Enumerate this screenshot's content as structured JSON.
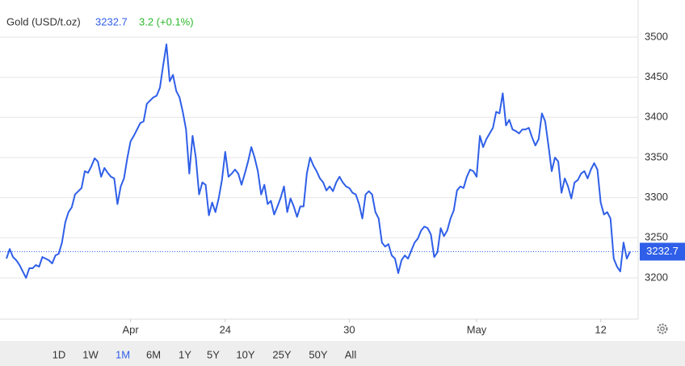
{
  "header": {
    "title": "Gold (USD/t.oz)",
    "price": "3232.7",
    "change": "3.2 (+0.1%)"
  },
  "chart_data": {
    "type": "line",
    "series": [
      {
        "color": "#2f5fe8",
        "values": [
          3224,
          3236,
          3226,
          3222,
          3216,
          3208,
          3200,
          3212,
          3212,
          3216,
          3214,
          3226,
          3224,
          3222,
          3218,
          3228,
          3230,
          3244,
          3269,
          3282,
          3288,
          3304,
          3308,
          3312,
          3333,
          3331,
          3339,
          3349,
          3345,
          3326,
          3337,
          3331,
          3326,
          3324,
          3292,
          3314,
          3324,
          3349,
          3370,
          3377,
          3385,
          3393,
          3395,
          3417,
          3421,
          3425,
          3427,
          3437,
          3465,
          3491,
          3445,
          3453,
          3433,
          3425,
          3407,
          3385,
          3330,
          3377,
          3350,
          3304,
          3319,
          3316,
          3278,
          3294,
          3282,
          3299,
          3322,
          3357,
          3326,
          3330,
          3335,
          3330,
          3316,
          3330,
          3345,
          3363,
          3350,
          3333,
          3304,
          3316,
          3292,
          3296,
          3279,
          3289,
          3300,
          3314,
          3282,
          3299,
          3289,
          3276,
          3289,
          3289,
          3330,
          3350,
          3340,
          3333,
          3324,
          3319,
          3309,
          3314,
          3308,
          3319,
          3326,
          3319,
          3314,
          3312,
          3306,
          3304,
          3292,
          3274,
          3304,
          3308,
          3304,
          3282,
          3274,
          3244,
          3239,
          3242,
          3228,
          3224,
          3206,
          3222,
          3228,
          3224,
          3234,
          3244,
          3249,
          3259,
          3264,
          3262,
          3254,
          3226,
          3232,
          3262,
          3252,
          3259,
          3274,
          3284,
          3309,
          3314,
          3312,
          3326,
          3335,
          3333,
          3326,
          3377,
          3363,
          3373,
          3380,
          3387,
          3407,
          3405,
          3430,
          3390,
          3397,
          3385,
          3383,
          3380,
          3385,
          3385,
          3387,
          3375,
          3365,
          3373,
          3405,
          3395,
          3365,
          3333,
          3350,
          3345,
          3306,
          3324,
          3314,
          3299,
          3319,
          3322,
          3330,
          3333,
          3324,
          3335,
          3343,
          3335,
          3294,
          3279,
          3282,
          3274,
          3224,
          3214,
          3208,
          3244,
          3224,
          3232.7
        ]
      }
    ],
    "xticks": [
      {
        "value": 38,
        "label": "Apr"
      },
      {
        "value": 67,
        "label": "24"
      },
      {
        "value": 105,
        "label": "30"
      },
      {
        "value": 144,
        "label": "May"
      },
      {
        "value": 182,
        "label": "12"
      }
    ],
    "ylim": [
      3148.6,
      3546.3
    ],
    "yticks": [
      3200,
      3250,
      3300,
      3350,
      3400,
      3450,
      3500
    ],
    "grid": true
  },
  "range_buttons": {
    "items": [
      "1D",
      "1W",
      "1M",
      "6M",
      "1Y",
      "5Y",
      "10Y",
      "25Y",
      "50Y",
      "All"
    ],
    "active": 2
  }
}
